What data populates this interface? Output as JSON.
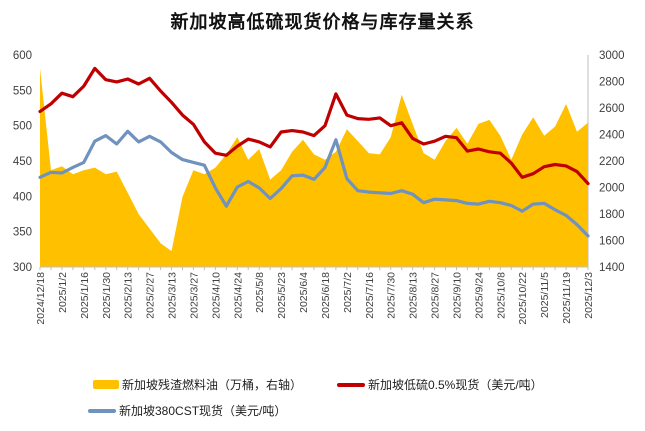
{
  "title": "新加坡高低硫现货价格与库存量关系",
  "colors": {
    "area": "#FFC000",
    "low_sulfur_line": "#C00000",
    "cst380_line": "#7092BE",
    "axis_text": "#404040",
    "axis_line": "#BFBFBF"
  },
  "legend": {
    "items": [
      {
        "label": "新加坡残渣燃料油（万桶，右轴）",
        "color": "#FFC000",
        "shape": "area"
      },
      {
        "label": "新加坡低硫0.5%现货（美元/吨）",
        "color": "#C00000",
        "shape": "line"
      },
      {
        "label": "新加坡380CST现货（美元/吨）",
        "color": "#7092BE",
        "shape": "line"
      }
    ]
  },
  "chart_data": {
    "type": "area",
    "subtype": "combo area + 2 lines, dual y-axes",
    "title": "新加坡高低硫现货价格与库存量关系",
    "grid": false,
    "legend_position": "bottom",
    "left_axis": {
      "min": 300,
      "max": 600,
      "step": 50,
      "ticks": [
        600,
        550,
        500,
        450,
        400,
        350,
        300
      ]
    },
    "right_axis": {
      "min": 1400,
      "max": 3000,
      "step": 200,
      "ticks": [
        3000,
        2800,
        2600,
        2400,
        2200,
        2000,
        1800,
        1600,
        1400
      ]
    },
    "x_tick_labels": [
      "2024/12/18",
      "2025/1/2",
      "2025/1/16",
      "2025/1/30",
      "2025/2/13",
      "2025/2/27",
      "2025/3/13",
      "2025/3/27",
      "2025/4/10",
      "2025/4/24",
      "2025/5/8",
      "2025/5/23",
      "2025/6/4",
      "2025/6/18",
      "2025/7/2",
      "2025/7/16",
      "2025/7/30",
      "2025/8/13",
      "2025/8/27",
      "2025/9/10",
      "2025/9/24",
      "2025/10/8",
      "2025/10/22",
      "2025/11/5",
      "2025/11/19",
      "2025/12/3"
    ],
    "x_label_every_nth_point": 2,
    "series": [
      {
        "name": "新加坡残渣燃料油（万桶，右轴）",
        "type": "area",
        "axis": "right",
        "color": "#FFC000",
        "values": [
          2900,
          2130,
          2160,
          2100,
          2130,
          2150,
          2100,
          2120,
          1960,
          1800,
          1690,
          1580,
          1520,
          1930,
          2130,
          2100,
          2150,
          2250,
          2380,
          2210,
          2290,
          2060,
          2130,
          2270,
          2360,
          2250,
          2210,
          2270,
          2440,
          2350,
          2260,
          2250,
          2380,
          2700,
          2480,
          2260,
          2210,
          2350,
          2450,
          2330,
          2480,
          2510,
          2390,
          2210,
          2400,
          2530,
          2390,
          2460,
          2630,
          2420,
          2490
        ]
      },
      {
        "name": "新加坡低硫0.5%现货（美元/吨）",
        "type": "line",
        "axis": "left",
        "color": "#C00000",
        "values": [
          520,
          531,
          546,
          541,
          556,
          581,
          565,
          562,
          566,
          559,
          567,
          549,
          533,
          515,
          502,
          477,
          461,
          458,
          471,
          481,
          477,
          470,
          491,
          493,
          491,
          486,
          500,
          545,
          515,
          510,
          509,
          511,
          500,
          504,
          482,
          474,
          478,
          485,
          483,
          464,
          467,
          463,
          461,
          447,
          427,
          432,
          442,
          445,
          443,
          435,
          418
        ]
      },
      {
        "name": "新加坡380CST现货（美元/吨）",
        "type": "line",
        "axis": "left",
        "color": "#7092BE",
        "values": [
          427,
          434,
          433,
          441,
          448,
          478,
          486,
          474,
          492,
          477,
          485,
          477,
          462,
          452,
          448,
          444,
          412,
          386,
          413,
          421,
          412,
          397,
          411,
          429,
          430,
          424,
          441,
          480,
          425,
          408,
          406,
          405,
          404,
          408,
          403,
          391,
          396,
          395,
          394,
          390,
          389,
          393,
          391,
          387,
          379,
          389,
          390,
          381,
          373,
          360,
          344
        ]
      }
    ]
  }
}
